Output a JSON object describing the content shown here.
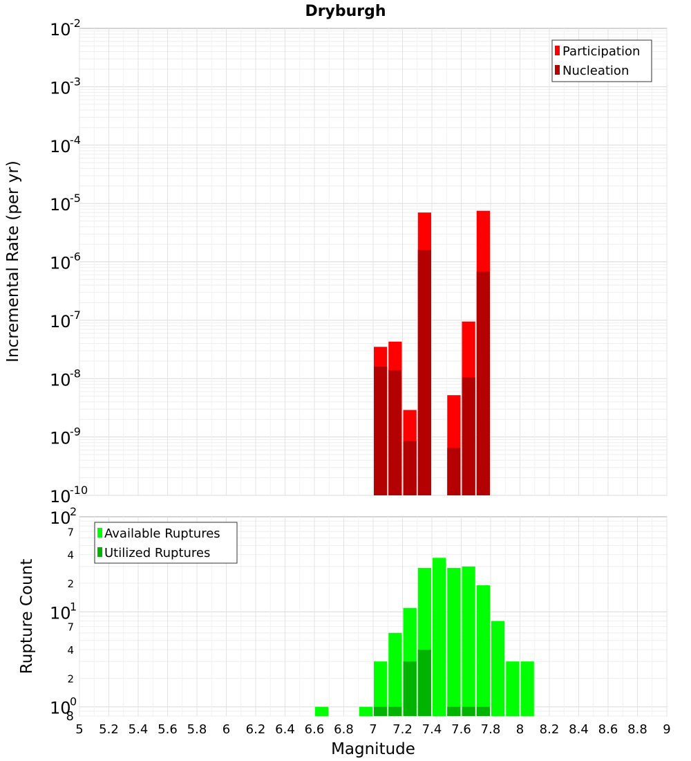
{
  "chart_data": [
    {
      "type": "bar",
      "title": "Dryburgh",
      "xlabel": "",
      "ylabel": "Incremental Rate (per yr)",
      "yscale": "log",
      "ylim": [
        1e-10,
        0.01
      ],
      "y_tick_labels": [
        {
          "base": "10",
          "exp": "-10"
        },
        {
          "base": "10",
          "exp": "-9"
        },
        {
          "base": "10",
          "exp": "-8"
        },
        {
          "base": "10",
          "exp": "-7"
        },
        {
          "base": "10",
          "exp": "-6"
        },
        {
          "base": "10",
          "exp": "-5"
        },
        {
          "base": "10",
          "exp": "-4"
        },
        {
          "base": "10",
          "exp": "-3"
        },
        {
          "base": "10",
          "exp": "-2"
        }
      ],
      "grid": true,
      "legend": {
        "position": "top-right",
        "entries": [
          "Participation",
          "Nucleation"
        ]
      },
      "x": [
        7.05,
        7.15,
        7.25,
        7.35,
        7.55,
        7.65,
        7.75
      ],
      "series": [
        {
          "name": "Participation",
          "color": "#ff0000",
          "values": [
            3.5e-08,
            4.3e-08,
            2.9e-09,
            7e-06,
            5.2e-09,
            9.5e-08,
            7.5e-06
          ]
        },
        {
          "name": "Nucleation",
          "color": "#b30000",
          "values": [
            1.6e-08,
            1.4e-08,
            8.5e-10,
            1.6e-06,
            6.5e-10,
            1.05e-08,
            6.8e-07
          ]
        }
      ]
    },
    {
      "type": "bar",
      "title": "",
      "xlabel": "Magnitude",
      "ylabel": "Rupture Count",
      "yscale": "log",
      "ylim": [
        0.8,
        100
      ],
      "y_tick_labels": [
        {
          "base": "10",
          "exp": "0"
        },
        {
          "base": "10",
          "exp": "1"
        },
        {
          "base": "10",
          "exp": "2"
        }
      ],
      "y_minor_labels": [
        "8",
        "2",
        "4",
        "7",
        "2",
        "4",
        "7"
      ],
      "x_tick_labels": [
        "5",
        "5.2",
        "5.4",
        "5.6",
        "5.8",
        "6",
        "6.2",
        "6.4",
        "6.6",
        "6.8",
        "7",
        "7.2",
        "7.4",
        "7.6",
        "7.8",
        "8",
        "8.2",
        "8.4",
        "8.6",
        "8.8",
        "9"
      ],
      "xlim": [
        5,
        9
      ],
      "grid": true,
      "legend": {
        "position": "top-left",
        "entries": [
          "Available Ruptures",
          "Utilized Ruptures"
        ]
      },
      "x": [
        6.65,
        6.95,
        7.05,
        7.15,
        7.25,
        7.35,
        7.45,
        7.55,
        7.65,
        7.75,
        7.85,
        7.95,
        8.05
      ],
      "series": [
        {
          "name": "Available Ruptures",
          "color": "#00ff00",
          "values": [
            1,
            1,
            3,
            6,
            11,
            29,
            37,
            29,
            30,
            19,
            8,
            3,
            3
          ]
        },
        {
          "name": "Utilized Ruptures",
          "color": "#00b300",
          "values": [
            0,
            0,
            1,
            1,
            3,
            4,
            0,
            1,
            1,
            1,
            0,
            0,
            0
          ]
        }
      ]
    }
  ]
}
